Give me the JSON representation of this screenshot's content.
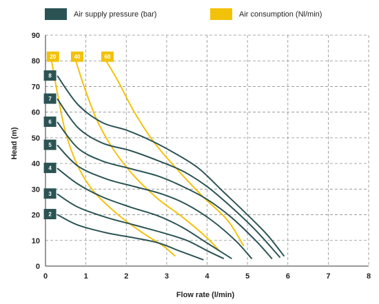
{
  "colors": {
    "pressure": "#2b5354",
    "consumption": "#f2c20a"
  },
  "legend": {
    "pressure_label": "Air supply pressure (bar)",
    "consumption_label": "Air consumption (Nl/min)"
  },
  "chart_data": {
    "type": "line",
    "xlabel": "Flow rate (l/min)",
    "ylabel": "Head (m)",
    "xlim": [
      0,
      8
    ],
    "ylim": [
      0,
      90
    ],
    "xticks": [
      "0",
      "1",
      "2",
      "3",
      "4",
      "5",
      "6",
      "7",
      "8"
    ],
    "yticks": [
      "0",
      "10",
      "20",
      "30",
      "40",
      "50",
      "60",
      "70",
      "80",
      "90"
    ],
    "grid": true,
    "legend_position": "top",
    "pressure_series": [
      {
        "name": "2",
        "x": [
          0.3,
          0.8,
          1.5,
          2.2,
          2.8,
          3.3,
          3.9
        ],
        "y": [
          20,
          16,
          13,
          11,
          9,
          6,
          2.5
        ]
      },
      {
        "name": "3",
        "x": [
          0.3,
          0.8,
          1.5,
          2.2,
          2.9,
          3.5,
          4.0,
          4.4
        ],
        "y": [
          28,
          23,
          19,
          16,
          13,
          10,
          6,
          3
        ]
      },
      {
        "name": "4",
        "x": [
          0.3,
          0.8,
          1.4,
          2.1,
          2.8,
          3.4,
          4.0,
          4.6
        ],
        "y": [
          38,
          32,
          27,
          23,
          19.5,
          15,
          9,
          3
        ]
      },
      {
        "name": "5",
        "x": [
          0.3,
          0.8,
          1.5,
          2.2,
          2.9,
          3.5,
          4.1,
          4.7,
          5.1
        ],
        "y": [
          47,
          39,
          34,
          31,
          28,
          24,
          18,
          10,
          3
        ]
      },
      {
        "name": "6",
        "x": [
          0.3,
          0.8,
          1.4,
          2.1,
          2.8,
          3.4,
          4.0,
          4.6,
          5.2,
          5.6
        ],
        "y": [
          56,
          46,
          41,
          38,
          35,
          31,
          26,
          19,
          10,
          3
        ]
      },
      {
        "name": "7",
        "x": [
          0.3,
          0.8,
          1.4,
          2.1,
          2.8,
          3.4,
          4.0,
          4.6,
          5.2,
          5.8
        ],
        "y": [
          65,
          54,
          48,
          45,
          41,
          37,
          31,
          23,
          14,
          3.5
        ]
      },
      {
        "name": "8",
        "x": [
          0.3,
          0.8,
          1.4,
          2.0,
          2.6,
          3.2,
          3.8,
          4.4,
          5.0,
          5.5,
          5.9
        ],
        "y": [
          74,
          63,
          56,
          53,
          49,
          44,
          38,
          29,
          20,
          12,
          4
        ]
      }
    ],
    "consumption_series": [
      {
        "name": "20",
        "x": [
          0.15,
          0.3,
          0.5,
          0.8,
          1.2,
          1.8,
          2.4,
          2.9,
          3.2
        ],
        "y": [
          80,
          67,
          52,
          39,
          29,
          20,
          13,
          8,
          4
        ]
      },
      {
        "name": "40",
        "x": [
          0.75,
          1.0,
          1.3,
          1.7,
          2.2,
          2.8,
          3.4,
          4.0,
          4.3
        ],
        "y": [
          80,
          68,
          56,
          45,
          35,
          26,
          19,
          11,
          6
        ]
      },
      {
        "name": "60",
        "x": [
          1.5,
          1.8,
          2.2,
          2.7,
          3.3,
          3.9,
          4.5,
          4.9
        ],
        "y": [
          80,
          72,
          60,
          48,
          37,
          27,
          18,
          8
        ]
      }
    ]
  }
}
